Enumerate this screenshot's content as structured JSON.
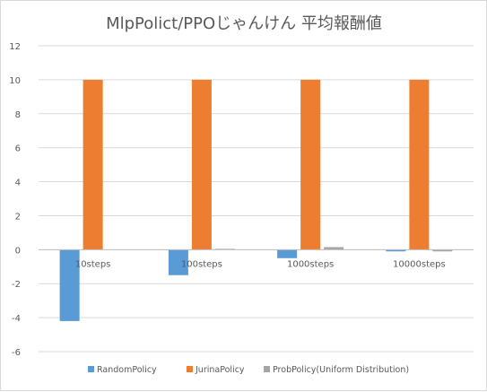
{
  "chart_data": {
    "type": "bar",
    "title": "MlpPolict/PPOじゃんけん 平均報酬値",
    "xlabel": "",
    "ylabel": "",
    "categories": [
      "10steps",
      "100steps",
      "1000steps",
      "10000steps"
    ],
    "series": [
      {
        "name": "RandomPolicy",
        "color": "#5b9bd5",
        "values": [
          -4.2,
          -1.5,
          -0.5,
          -0.1
        ]
      },
      {
        "name": "JurinaPolicy",
        "color": "#ed7d31",
        "values": [
          10,
          10,
          10,
          10
        ]
      },
      {
        "name": "ProbPolicy(Uniform Distribution)",
        "color": "#a5a5a5",
        "values": [
          0,
          0.05,
          0.15,
          -0.1
        ]
      }
    ],
    "ylim": [
      -6,
      12
    ],
    "yticks": [
      -6,
      -4,
      -2,
      0,
      2,
      4,
      6,
      8,
      10,
      12
    ],
    "grid": true,
    "legend_position": "bottom"
  }
}
